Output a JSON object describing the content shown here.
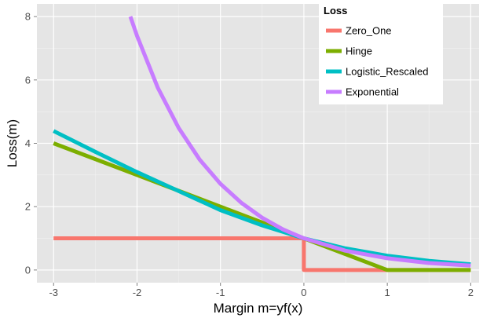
{
  "chart_data": {
    "type": "line",
    "xlabel": "Margin m=yf(x)",
    "ylabel": "Loss(m)",
    "xlim": [
      -3.2,
      2.1
    ],
    "ylim": [
      -0.4,
      8.4
    ],
    "x_ticks": [
      -3,
      -2,
      -1,
      0,
      1,
      2
    ],
    "y_ticks": [
      0,
      2,
      4,
      6,
      8
    ],
    "grid": true,
    "legend": {
      "title": "Loss",
      "placement": "top-right"
    },
    "series": [
      {
        "name": "Zero_One",
        "color": "#F8766D",
        "x": [
          -3,
          0,
          0,
          2
        ],
        "y": [
          1,
          1,
          0,
          0
        ]
      },
      {
        "name": "Hinge",
        "color": "#7CAE00",
        "x": [
          -3,
          1,
          2
        ],
        "y": [
          4,
          0,
          0
        ]
      },
      {
        "name": "Logistic_Rescaled",
        "color": "#00BFC4",
        "x": [
          -3,
          -2.5,
          -2,
          -1.5,
          -1,
          -0.5,
          0,
          0.5,
          1,
          1.5,
          2
        ],
        "y": [
          4.39,
          3.73,
          3.09,
          2.49,
          1.89,
          1.41,
          1.0,
          0.68,
          0.45,
          0.29,
          0.18
        ]
      },
      {
        "name": "Exponential",
        "color": "#C77CFF",
        "x": [
          -2.08,
          -2,
          -1.75,
          -1.5,
          -1.25,
          -1,
          -0.75,
          -0.5,
          -0.25,
          0,
          0.5,
          1,
          1.5,
          2
        ],
        "y": [
          8.0,
          7.39,
          5.75,
          4.48,
          3.49,
          2.72,
          2.12,
          1.65,
          1.28,
          1.0,
          0.61,
          0.37,
          0.22,
          0.14
        ]
      }
    ]
  }
}
